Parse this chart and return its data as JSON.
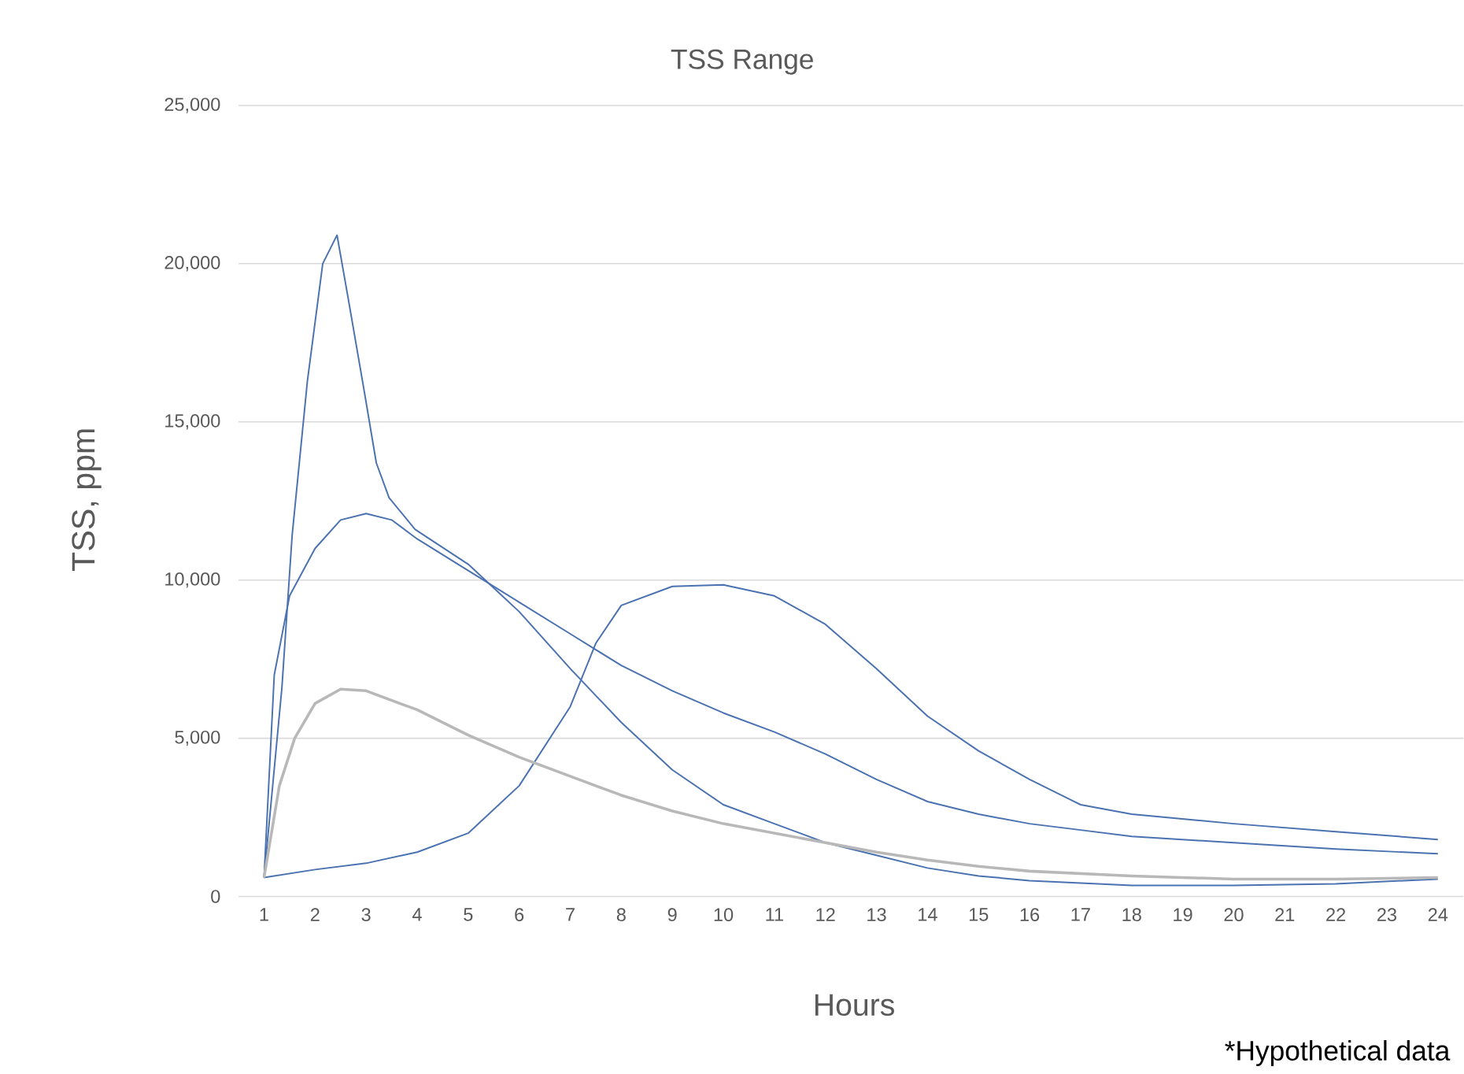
{
  "chart_data": {
    "type": "line",
    "title": "TSS Range",
    "xlabel": "Hours",
    "ylabel": "TSS, ppm",
    "annotations": [
      "*Hypothetical data"
    ],
    "xlim": [
      0.5,
      24.5
    ],
    "xticks": [
      1,
      2,
      3,
      4,
      5,
      6,
      7,
      8,
      9,
      10,
      11,
      12,
      13,
      14,
      15,
      16,
      17,
      18,
      19,
      20,
      21,
      22,
      23,
      24
    ],
    "ylim": [
      0,
      25000
    ],
    "yticks": [
      {
        "value": 0,
        "label": "0"
      },
      {
        "value": 5000,
        "label": "5,000"
      },
      {
        "value": 10000,
        "label": "10,000"
      },
      {
        "value": 15000,
        "label": "15,000"
      },
      {
        "value": 20000,
        "label": "20,000"
      },
      {
        "value": 25000,
        "label": "25,000"
      }
    ],
    "grid": "y",
    "legend": false,
    "marker": "none",
    "line_style": "solid",
    "series": [
      {
        "color": "#4a72b0",
        "x": [
          1,
          1.35,
          1.55,
          1.85,
          2.15,
          2.43,
          2.66,
          2.96,
          3.2,
          3.45,
          3.96,
          5,
          6,
          7,
          8,
          9,
          10,
          11,
          12,
          13,
          14,
          15,
          16,
          18,
          20,
          22,
          24
        ],
        "values": [
          600,
          6600,
          11400,
          16300,
          20000,
          20900,
          18800,
          16000,
          13700,
          12600,
          11600,
          10500,
          9000,
          7200,
          5500,
          4000,
          2900,
          2300,
          1700,
          1300,
          900,
          650,
          500,
          350,
          350,
          400,
          550
        ]
      },
      {
        "color": "#4a72b0",
        "x": [
          1,
          1.2,
          1.5,
          2,
          2.5,
          3,
          3.5,
          4,
          5,
          6,
          7,
          8,
          9,
          10,
          11,
          12,
          13,
          14,
          15,
          16,
          17,
          18,
          20,
          22,
          24
        ],
        "values": [
          600,
          7000,
          9500,
          11000,
          11900,
          12100,
          11900,
          11300,
          10300,
          9300,
          8300,
          7300,
          6500,
          5800,
          5200,
          4500,
          3700,
          3000,
          2600,
          2300,
          2100,
          1900,
          1700,
          1500,
          1350
        ]
      },
      {
        "color": "#4a72b0",
        "x": [
          1,
          2,
          3,
          4,
          5,
          6,
          7,
          7.5,
          8,
          9,
          10,
          11,
          12,
          13,
          14,
          15,
          16,
          17,
          18,
          20,
          22,
          24
        ],
        "values": [
          600,
          850,
          1050,
          1400,
          2000,
          3500,
          6000,
          8000,
          9200,
          9800,
          9850,
          9500,
          8600,
          7200,
          5700,
          4600,
          3700,
          2900,
          2600,
          2300,
          2050,
          1800
        ]
      },
      {
        "color": "#b8b8b8",
        "x": [
          1,
          1.3,
          1.6,
          2,
          2.5,
          3,
          4,
          5,
          6,
          7,
          8,
          9,
          10,
          11,
          12,
          13,
          14,
          15,
          16,
          18,
          20,
          22,
          24
        ],
        "values": [
          600,
          3500,
          5000,
          6100,
          6550,
          6500,
          5900,
          5100,
          4400,
          3800,
          3200,
          2700,
          2300,
          2000,
          1700,
          1400,
          1150,
          950,
          800,
          650,
          550,
          550,
          600
        ]
      }
    ]
  }
}
